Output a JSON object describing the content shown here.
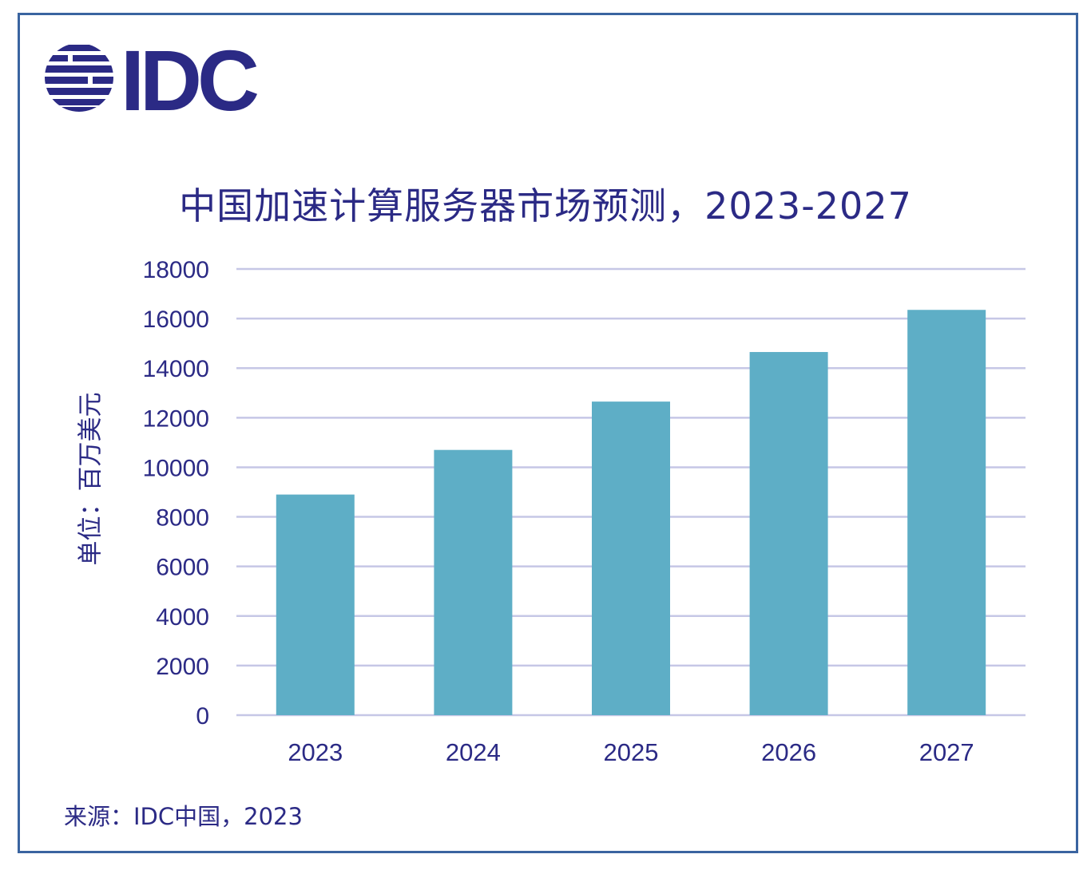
{
  "logo": {
    "text": "IDC",
    "color": "#2b2a85",
    "icon": "globe-stripes-icon"
  },
  "colors": {
    "bar": "#5eaec6",
    "grid": "#c6c7e6",
    "text": "#2b2a85",
    "border": "#3a64a0"
  },
  "chart_data": {
    "type": "bar",
    "title": "中国加速计算服务器市场预测，2023-2027",
    "ylabel": "单位：百万美元",
    "xlabel": "",
    "categories": [
      "2023",
      "2024",
      "2025",
      "2026",
      "2027"
    ],
    "values": [
      8900,
      10700,
      12650,
      14650,
      16350
    ],
    "ylim": [
      0,
      18000
    ],
    "yticks": [
      0,
      2000,
      4000,
      6000,
      8000,
      10000,
      12000,
      14000,
      16000,
      18000
    ],
    "grid": true,
    "legend": "none"
  },
  "footer": {
    "source": "来源：IDC中国，2023"
  }
}
